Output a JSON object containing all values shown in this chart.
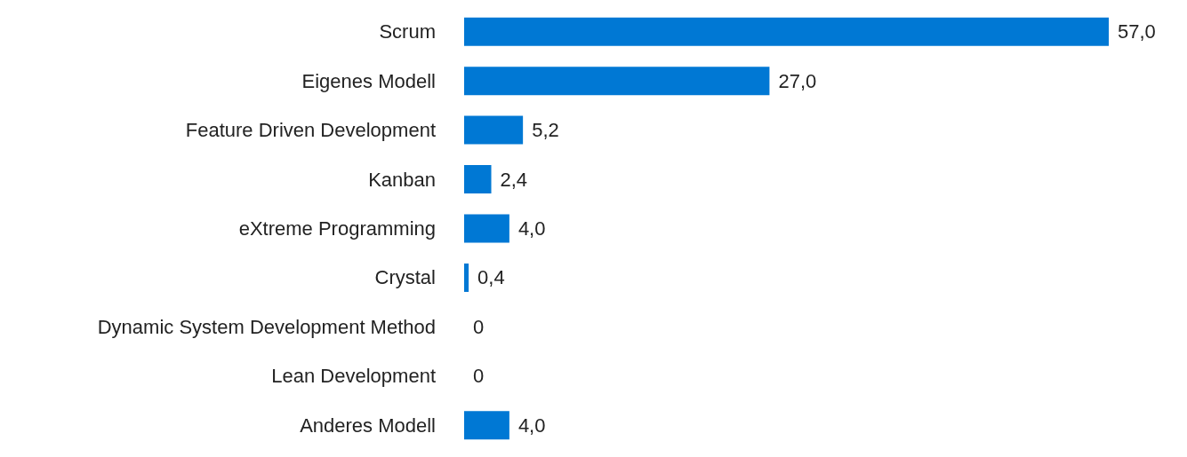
{
  "chart_data": {
    "type": "bar",
    "orientation": "horizontal",
    "categories": [
      "Scrum",
      "Eigenes Modell",
      "Feature Driven Development",
      "Kanban",
      "eXtreme Programming",
      "Crystal",
      "Dynamic System Development Method",
      "Lean Development",
      "Anderes Modell"
    ],
    "values": [
      57.0,
      27.0,
      5.2,
      2.4,
      4.0,
      0.4,
      0,
      0,
      4.0
    ],
    "value_labels": [
      "57,0",
      "27,0",
      "5,2",
      "2,4",
      "4,0",
      "0,4",
      "0",
      "0",
      "4,0"
    ],
    "color": "#0078d4"
  }
}
